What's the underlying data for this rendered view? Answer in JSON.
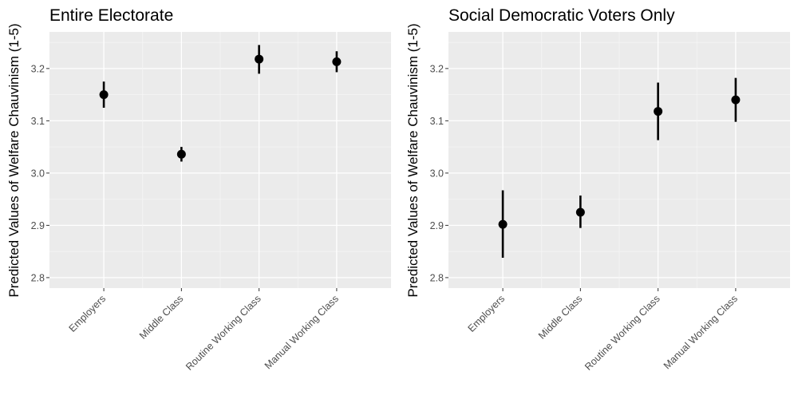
{
  "colors": {
    "panel_background": "#ebebeb",
    "grid_major": "#ffffff",
    "grid_minor": "#f5f5f5",
    "point": "#000000",
    "tick_text": "#4d4d4d"
  },
  "chart_data": [
    {
      "type": "scatter",
      "subtype": "point-range",
      "title": "Entire Electorate",
      "xlabel": "",
      "ylabel": "Predicted Values of Welfare Chauvinism (1-5)",
      "categories": [
        "Employers",
        "Middle Class",
        "Routine Working Class",
        "Manual Working Class"
      ],
      "values": [
        3.15,
        3.036,
        3.218,
        3.213
      ],
      "lower": [
        3.125,
        3.022,
        3.19,
        3.193
      ],
      "upper": [
        3.175,
        3.05,
        3.245,
        3.233
      ],
      "yticks": [
        2.8,
        2.9,
        3.0,
        3.1,
        3.2
      ],
      "ytick_labels": [
        "2.8",
        "2.9",
        "3.0",
        "3.1",
        "3.2"
      ],
      "ylim": [
        2.78,
        3.27
      ],
      "grid": true,
      "legend": "none"
    },
    {
      "type": "scatter",
      "subtype": "point-range",
      "title": "Social Democratic Voters Only",
      "xlabel": "",
      "ylabel": "Predicted Values of Welfare Chauvinism (1-5)",
      "categories": [
        "Employers",
        "Middle Class",
        "Routine Working Class",
        "Manual Working Class"
      ],
      "values": [
        2.902,
        2.925,
        3.118,
        3.14
      ],
      "lower": [
        2.838,
        2.895,
        3.063,
        3.098
      ],
      "upper": [
        2.967,
        2.957,
        3.173,
        3.182
      ],
      "yticks": [
        2.8,
        2.9,
        3.0,
        3.1,
        3.2
      ],
      "ytick_labels": [
        "2.8",
        "2.9",
        "3.0",
        "3.1",
        "3.2"
      ],
      "ylim": [
        2.78,
        3.27
      ],
      "grid": true,
      "legend": "none"
    }
  ]
}
